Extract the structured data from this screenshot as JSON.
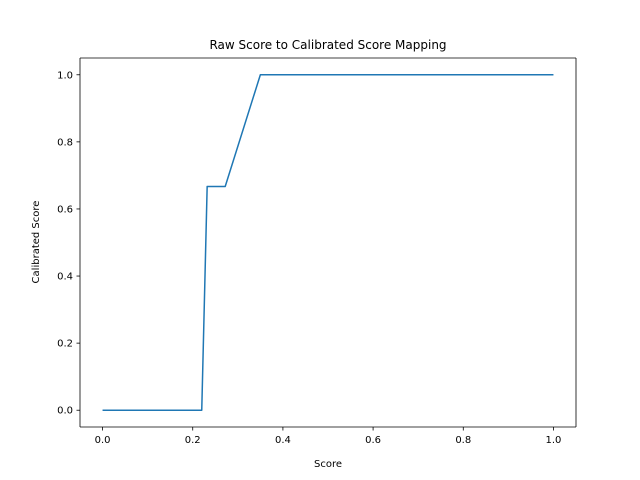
{
  "chart_data": {
    "type": "line",
    "title": "Raw Score to Calibrated Score Mapping",
    "xlabel": "Score",
    "ylabel": "Calibrated Score",
    "xlim": [
      -0.05,
      1.05
    ],
    "ylim": [
      -0.05,
      1.05
    ],
    "xticks": [
      0.0,
      0.2,
      0.4,
      0.6,
      0.8,
      1.0
    ],
    "yticks": [
      0.0,
      0.2,
      0.4,
      0.6,
      0.8,
      1.0
    ],
    "xtick_labels": [
      "0.0",
      "0.2",
      "0.4",
      "0.6",
      "0.8",
      "1.0"
    ],
    "ytick_labels": [
      "0.0",
      "0.2",
      "0.4",
      "0.6",
      "0.8",
      "1.0"
    ],
    "grid": false,
    "series": [
      {
        "color": "#1f77b4",
        "x": [
          0.0,
          0.22,
          0.232,
          0.272,
          0.35,
          1.0
        ],
        "y": [
          0.0,
          0.0,
          0.667,
          0.667,
          1.0,
          1.0
        ]
      }
    ]
  }
}
